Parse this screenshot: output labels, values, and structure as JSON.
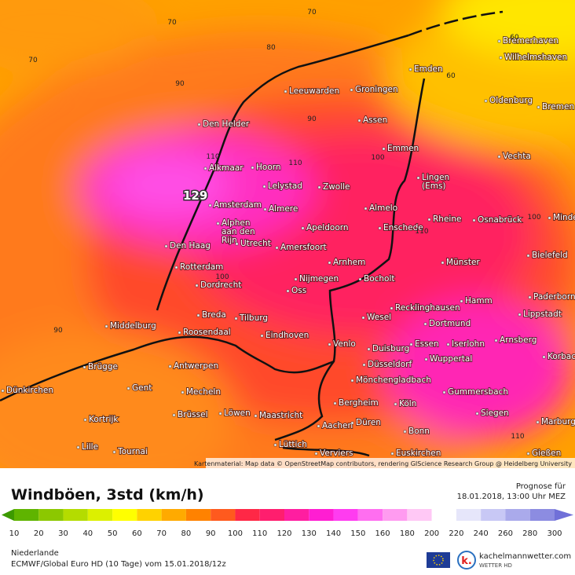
{
  "header": {
    "title": "Windböen, 3std (km/h)",
    "forecast_label": "Prognose für",
    "forecast_time": "18.01.2018, 13:00 Uhr MEZ"
  },
  "map": {
    "max_value": 129,
    "cities": [
      [
        "Bremerhaven"
      ],
      [
        "Wilhelmshaven"
      ],
      [
        "Emden"
      ],
      [
        "Groningen"
      ],
      [
        "Leeuwarden"
      ],
      [
        "Oldenburg"
      ],
      [
        "Bremen"
      ],
      [
        "Den Helder"
      ],
      [
        "Assen"
      ],
      [
        "Emmen"
      ],
      [
        "Vechta"
      ],
      [
        "Alkmaar"
      ],
      [
        "Hoorn"
      ],
      [
        "Lelystad"
      ],
      [
        "Zwolle"
      ],
      [
        "Lingen",
        "(Ems)"
      ],
      [
        "Amsterdam"
      ],
      [
        "Almere"
      ],
      [
        "Almelo"
      ],
      [
        "Rheine"
      ],
      [
        "Osnabrück"
      ],
      [
        "Minden"
      ],
      [
        "Alphen",
        "aan den",
        "Rijn"
      ],
      [
        "Apeldoorn"
      ],
      [
        "Enschede"
      ],
      [
        "Den Haag"
      ],
      [
        "Utrecht"
      ],
      [
        "Amersfoort"
      ],
      [
        "Bielefeld"
      ],
      [
        "Arnhem"
      ],
      [
        "Münster"
      ],
      [
        "Rotterdam"
      ],
      [
        "Nijmegen"
      ],
      [
        "Bocholt"
      ],
      [
        "Dordrecht"
      ],
      [
        "Oss"
      ],
      [
        "Paderborn"
      ],
      [
        "Hamm"
      ],
      [
        "Recklinghausen"
      ],
      [
        "Lippstadt"
      ],
      [
        "Breda"
      ],
      [
        "Tilburg"
      ],
      [
        "Wesel"
      ],
      [
        "Dortmund"
      ],
      [
        "Middelburg"
      ],
      [
        "Roosendaal"
      ],
      [
        "Iserlohn"
      ],
      [
        "Arnsberg"
      ],
      [
        "Eindhoven"
      ],
      [
        "Essen"
      ],
      [
        "Duisburg"
      ],
      [
        "Venlo"
      ],
      [
        "Korbach"
      ],
      [
        "Wuppertal"
      ],
      [
        "Düsseldorf"
      ],
      [
        "Brügge"
      ],
      [
        "Antwerpen"
      ],
      [
        "Mönchengladbach"
      ],
      [
        "Gent"
      ],
      [
        "Gummersbach"
      ],
      [
        "Dünkirchen"
      ],
      [
        "Mecheln"
      ],
      [
        "Bergheim"
      ],
      [
        "Köln"
      ],
      [
        "Kortrijk"
      ],
      [
        "Brüssel"
      ],
      [
        "Löwen"
      ],
      [
        "Maastricht"
      ],
      [
        "Siegen"
      ],
      [
        "Aachen"
      ],
      [
        "Düren"
      ],
      [
        "Marburg"
      ],
      [
        "Bonn"
      ],
      [
        "Lille"
      ],
      [
        "Tournai"
      ],
      [
        "Lüttich"
      ],
      [
        "Verviers"
      ],
      [
        "Euskirchen"
      ],
      [
        "Gießen"
      ]
    ],
    "contour_labels": [
      70,
      70,
      70,
      80,
      90,
      90,
      60,
      60,
      110,
      110,
      100,
      100,
      100,
      110,
      90,
      110
    ],
    "attribution": "Kartenmaterial: Map data © OpenStreetMap contributors, rendering GIScience Research Group @ Heidelberg University"
  },
  "legend": {
    "values": [
      10,
      20,
      30,
      40,
      50,
      60,
      70,
      80,
      90,
      100,
      110,
      120,
      130,
      140,
      150,
      160,
      180,
      200,
      220,
      240,
      260,
      280,
      300
    ],
    "colors": [
      "#3c9a00",
      "#5fb400",
      "#8cc800",
      "#b4dc00",
      "#dcf000",
      "#ffff00",
      "#ffd200",
      "#ffaa00",
      "#ff8200",
      "#ff5a1e",
      "#ff2846",
      "#ff1e6e",
      "#ff1ea0",
      "#ff1ed2",
      "#ff3cf0",
      "#ff6ef0",
      "#ff9bf0",
      "#ffc8f5",
      "#ffffff",
      "#e6e6fa",
      "#c8c8f5",
      "#aaaaeb",
      "#8c8ce1"
    ]
  },
  "footer": {
    "region": "Niederlande",
    "model": "ECMWF/Global Euro HD (10 Tage) vom 15.01.2018/12z",
    "logo_letter": "k.",
    "brand": "kachelmannwetter.com",
    "brand_sub": "WETTER HD"
  }
}
